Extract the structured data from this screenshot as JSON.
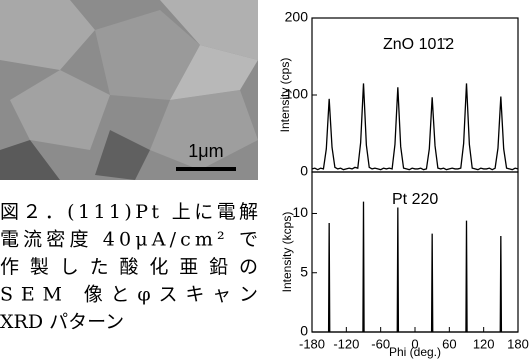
{
  "image": {
    "scale_bar": "1μm"
  },
  "caption": [
    "図２．(111)Pt 上に電解",
    "電流密度 40μA/cm² で",
    "作製した酸化亜鉛の",
    "SEM 像とφスキャン",
    "XRD パターン"
  ],
  "chart_data": [
    {
      "type": "line",
      "ylabel": "Intensity (cps)",
      "annotation": "ZnO 101̄2",
      "xlim": [
        -180,
        180
      ],
      "ylim": [
        0,
        200
      ],
      "yticks": [
        0,
        100,
        200
      ],
      "x": [
        -180,
        -175,
        -170,
        -165,
        -160,
        -155,
        -150,
        -145,
        -140,
        -135,
        -130,
        -125,
        -120,
        -115,
        -110,
        -105,
        -100,
        -95,
        -90,
        -85,
        -80,
        -75,
        -70,
        -65,
        -60,
        -55,
        -50,
        -45,
        -40,
        -35,
        -30,
        -25,
        -20,
        -15,
        -10,
        -5,
        0,
        5,
        10,
        15,
        20,
        25,
        30,
        35,
        40,
        45,
        50,
        55,
        60,
        65,
        70,
        75,
        80,
        85,
        90,
        95,
        100,
        105,
        110,
        115,
        120,
        125,
        130,
        135,
        140,
        145,
        150,
        155,
        160,
        165,
        170,
        175,
        180
      ],
      "series": [
        {
          "color": "#000000",
          "values": [
            4,
            5,
            3,
            5,
            4,
            30,
            95,
            32,
            6,
            4,
            5,
            3,
            4,
            5,
            4,
            6,
            5,
            38,
            115,
            35,
            6,
            4,
            5,
            4,
            3,
            5,
            4,
            5,
            4,
            36,
            110,
            33,
            5,
            4,
            3,
            5,
            4,
            4,
            5,
            3,
            4,
            30,
            97,
            34,
            5,
            4,
            5,
            3,
            4,
            5,
            4,
            4,
            5,
            37,
            115,
            36,
            5,
            4,
            3,
            5,
            4,
            4,
            5,
            3,
            5,
            31,
            98,
            30,
            5,
            4,
            3,
            5,
            4
          ]
        }
      ]
    },
    {
      "type": "line",
      "ylabel": "Intensity (kcps)",
      "xlabel": "Phi (deg.)",
      "annotation": "Pt 220",
      "xlim": [
        -180,
        180
      ],
      "xticks": [
        -180,
        -120,
        -60,
        0,
        60,
        120,
        180
      ],
      "ylim": [
        0,
        13.5
      ],
      "yticks": [
        0,
        5,
        10
      ],
      "x": [
        -180,
        -151,
        -150,
        -149,
        -91,
        -90,
        -89,
        -31,
        -30,
        -29,
        29,
        30,
        31,
        89,
        90,
        91,
        149,
        150,
        151,
        180
      ],
      "series": [
        {
          "color": "#000000",
          "values": [
            0,
            0,
            9.2,
            0,
            0,
            11,
            0,
            0,
            10.5,
            0,
            0,
            8.3,
            0,
            0,
            9.4,
            0,
            0,
            8.1,
            0,
            0
          ]
        }
      ]
    }
  ]
}
